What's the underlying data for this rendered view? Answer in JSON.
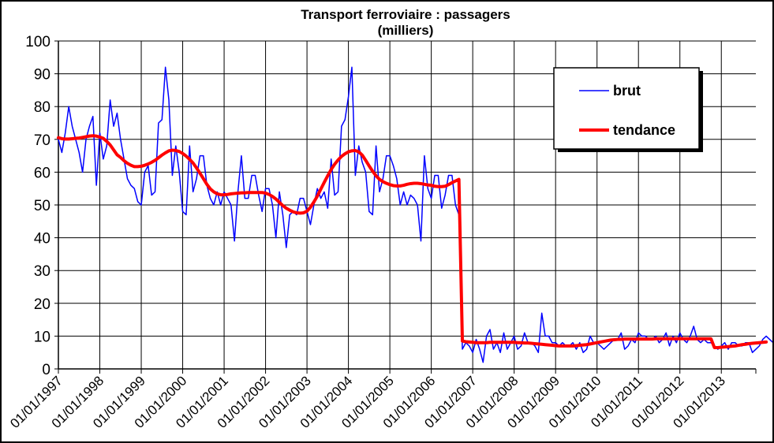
{
  "chart_data": {
    "type": "line",
    "title": "Transport ferroviaire  : passagers",
    "subtitle": "(milliers)",
    "xlabel": "",
    "ylabel": "",
    "ylim": [
      0,
      100
    ],
    "yticks": [
      0,
      10,
      20,
      30,
      40,
      50,
      60,
      70,
      80,
      90,
      100
    ],
    "xlim": [
      "1997-01",
      "2013-11"
    ],
    "x_tick_labels": [
      "01/01/1997",
      "01/01/1998",
      "01/01/1999",
      "01/01/2000",
      "01/01/2001",
      "01/01/2002",
      "01/01/2003",
      "01/01/2004",
      "01/01/2005",
      "01/01/2006",
      "01/01/2007",
      "01/01/2008",
      "01/01/2009",
      "01/01/2010",
      "01/01/2011",
      "01/01/2012",
      "01/01/2013"
    ],
    "grid": true,
    "legend_position": "top-right",
    "series": [
      {
        "name": "brut",
        "color": "#0000ff",
        "start": "1997-01",
        "frequency": "monthly",
        "values": [
          70,
          66,
          72,
          80,
          74,
          70,
          66,
          60,
          70,
          74,
          77,
          56,
          72,
          64,
          68,
          82,
          74,
          78,
          70,
          64,
          58,
          56,
          55,
          51,
          50,
          60,
          62,
          53,
          54,
          75,
          76,
          92,
          82,
          59,
          68,
          60,
          48,
          47,
          68,
          54,
          58,
          65,
          65,
          56,
          52,
          50,
          54,
          50,
          54,
          52,
          50,
          39,
          54,
          65,
          52,
          52,
          59,
          59,
          53,
          48,
          55,
          55,
          50,
          40,
          54,
          47,
          37,
          47,
          48,
          47,
          52,
          52,
          48,
          44,
          50,
          55,
          52,
          54,
          49,
          64,
          53,
          54,
          74,
          76,
          83,
          92,
          59,
          68,
          63,
          60,
          48,
          47,
          68,
          54,
          58,
          65,
          65,
          62,
          58,
          50,
          54,
          50,
          53,
          52,
          50,
          39,
          65,
          55,
          52,
          59,
          59,
          49,
          53,
          59,
          59,
          50,
          47,
          6,
          8,
          7,
          5,
          9,
          6,
          2,
          10,
          12,
          6,
          8,
          5,
          11,
          6,
          8,
          10,
          6,
          7,
          11,
          8,
          8,
          7,
          5,
          17,
          10,
          10,
          8,
          8,
          7,
          8,
          7,
          7,
          8,
          6,
          8,
          5,
          6,
          10,
          8,
          8,
          7,
          6,
          7,
          8,
          9,
          9,
          11,
          6,
          7,
          9,
          8,
          11,
          10,
          10,
          9,
          9,
          10,
          8,
          9,
          11,
          7,
          10,
          8,
          11,
          9,
          8,
          10,
          13,
          9,
          8,
          9,
          8,
          8,
          7,
          6,
          7,
          8,
          6,
          8,
          8,
          7,
          7,
          8,
          8,
          5,
          6,
          7,
          9,
          10,
          9,
          8
        ]
      },
      {
        "name": "tendance",
        "color": "#ff0000",
        "start": "1997-01",
        "frequency": "monthly",
        "values": [
          70.5,
          70.2,
          70.1,
          70.1,
          70.2,
          70.3,
          70.4,
          70.6,
          70.8,
          71,
          71.1,
          71,
          70.7,
          70.3,
          69.4,
          68.3,
          66.8,
          65.3,
          64.5,
          63.5,
          62.7,
          62.1,
          61.7,
          61.7,
          61.8,
          62.1,
          62.5,
          63,
          63.6,
          64.4,
          65.2,
          65.9,
          66.5,
          66.7,
          66.6,
          66.3,
          65.7,
          64.9,
          63.9,
          62.8,
          61.3,
          59.7,
          58,
          56.3,
          54.9,
          54,
          53.4,
          53.1,
          53.1,
          53.2,
          53.4,
          53.5,
          53.6,
          53.7,
          53.7,
          53.8,
          53.8,
          53.8,
          53.8,
          53.8,
          53.6,
          53.2,
          52.6,
          51.8,
          50.8,
          49.8,
          49,
          48.4,
          47.9,
          47.6,
          47.5,
          47.6,
          48.1,
          49.3,
          50.9,
          52.7,
          54.8,
          56.9,
          58.9,
          60.8,
          62.4,
          63.7,
          64.8,
          65.6,
          66.2,
          66.5,
          66.6,
          66.2,
          65.2,
          63.6,
          61.9,
          60.3,
          58.9,
          57.8,
          57.1,
          56.6,
          56.2,
          55.9,
          55.8,
          55.8,
          56,
          56.3,
          56.5,
          56.6,
          56.6,
          56.5,
          56.3,
          56.1,
          56,
          55.7,
          55.6,
          55.6,
          55.7,
          56.2,
          56.8,
          57.3,
          57.8,
          8.5,
          8.3,
          8.2,
          8.1,
          8,
          8,
          8,
          8,
          8.1,
          8.1,
          8.1,
          8.1,
          8.1,
          8.1,
          8.1,
          8.1,
          8,
          8,
          7.9,
          7.9,
          7.8,
          7.7,
          7.6,
          7.5,
          7.4,
          7.3,
          7.2,
          7.1,
          7,
          7,
          7,
          7,
          7,
          7.1,
          7.2,
          7.3,
          7.4,
          7.6,
          7.8,
          8,
          8.2,
          8.4,
          8.6,
          8.8,
          8.9,
          9,
          9,
          9.1,
          9.1,
          9.1,
          9.1,
          9.1,
          9.1,
          9.1,
          9.1,
          9.1,
          9.2,
          9.2,
          9.2,
          9.2,
          9.2,
          9.2,
          9.2,
          9.2,
          9.2,
          9.2,
          9.2,
          9.2,
          9.2,
          9.2,
          9.2,
          9.2,
          9.2,
          6.5,
          6.5,
          6.6,
          6.7,
          6.8,
          6.9,
          7,
          7.2,
          7.4,
          7.5,
          7.7,
          7.8,
          7.9,
          8,
          8.1,
          8.2
        ]
      }
    ]
  }
}
